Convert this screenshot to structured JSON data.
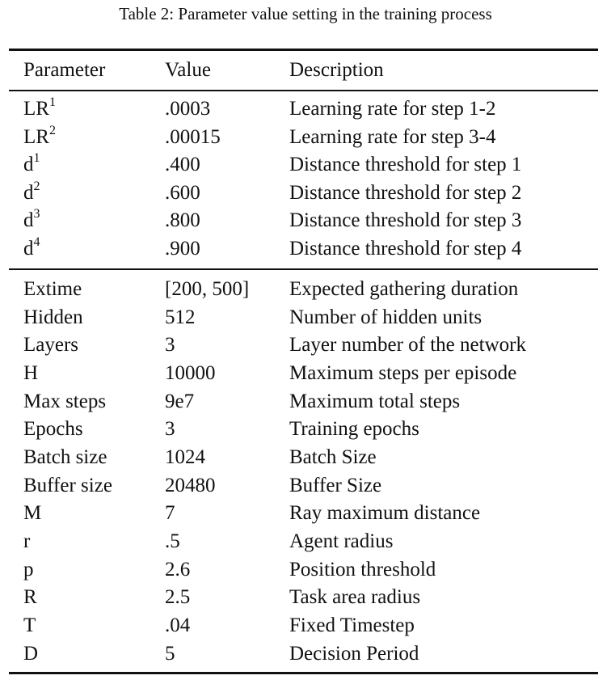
{
  "caption": "Table 2: Parameter value setting in the training process",
  "headers": {
    "parameter": "Parameter",
    "value": "Value",
    "description": "Description"
  },
  "group1": [
    {
      "param": "LR",
      "sup": "1",
      "value": ".0003",
      "desc": "Learning rate for step 1-2"
    },
    {
      "param": "LR",
      "sup": "2",
      "value": ".00015",
      "desc": "Learning rate for step 3-4"
    },
    {
      "param": "d",
      "sup": "1",
      "value": ".400",
      "desc": "Distance threshold for step 1"
    },
    {
      "param": "d",
      "sup": "2",
      "value": ".600",
      "desc": "Distance threshold for step 2"
    },
    {
      "param": "d",
      "sup": "3",
      "value": ".800",
      "desc": "Distance threshold for step 3"
    },
    {
      "param": "d",
      "sup": "4",
      "value": ".900",
      "desc": "Distance threshold for step 4"
    }
  ],
  "group2": [
    {
      "param": "Extime",
      "value": "[200, 500]",
      "desc": "Expected gathering duration"
    },
    {
      "param": "Hidden",
      "value": "512",
      "desc": "Number of hidden units"
    },
    {
      "param": "Layers",
      "value": "3",
      "desc": "Layer number of the network"
    },
    {
      "param": "H",
      "value": "10000",
      "desc": "Maximum steps per episode"
    },
    {
      "param": "Max steps",
      "value": "9e7",
      "desc": "Maximum total steps"
    },
    {
      "param": "Epochs",
      "value": "3",
      "desc": "Training epochs"
    },
    {
      "param": "Batch size",
      "value": "1024",
      "desc": "Batch Size"
    },
    {
      "param": "Buffer size",
      "value": "20480",
      "desc": "Buffer Size"
    },
    {
      "param": "M",
      "value": "7",
      "desc": "Ray maximum distance"
    },
    {
      "param": "r",
      "value": ".5",
      "desc": "Agent radius"
    },
    {
      "param": "p",
      "value": "2.6",
      "desc": "Position threshold"
    },
    {
      "param": "R",
      "value": "2.5",
      "desc": "Task area radius"
    },
    {
      "param": "T",
      "value": ".04",
      "desc": "Fixed Timestep"
    },
    {
      "param": "D",
      "value": "5",
      "desc": "Decision Period"
    }
  ]
}
